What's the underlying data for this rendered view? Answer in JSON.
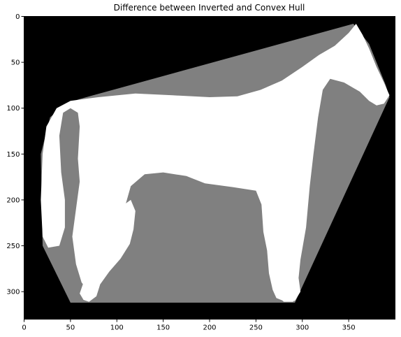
{
  "title": "Difference between Inverted and Convex Hull",
  "colors": {
    "background": "#000000",
    "hull_difference": "#808080",
    "horse": "#ffffff",
    "frame": "#000000"
  },
  "image_extent": {
    "width": 400,
    "height": 330
  },
  "x_ticks": [
    {
      "value": 0,
      "label": "0"
    },
    {
      "value": 50,
      "label": "50"
    },
    {
      "value": 100,
      "label": "100"
    },
    {
      "value": 150,
      "label": "150"
    },
    {
      "value": 200,
      "label": "200"
    },
    {
      "value": 250,
      "label": "250"
    },
    {
      "value": 300,
      "label": "300"
    },
    {
      "value": 350,
      "label": "350"
    }
  ],
  "y_ticks": [
    {
      "value": 0,
      "label": "0"
    },
    {
      "value": 50,
      "label": "50"
    },
    {
      "value": 100,
      "label": "100"
    },
    {
      "value": 150,
      "label": "150"
    },
    {
      "value": 200,
      "label": "200"
    },
    {
      "value": 250,
      "label": "250"
    },
    {
      "value": 300,
      "label": "300"
    }
  ],
  "hull_polygon": [
    [
      355,
      8
    ],
    [
      372,
      30
    ],
    [
      390,
      75
    ],
    [
      394,
      88
    ],
    [
      292,
      312
    ],
    [
      50,
      312
    ],
    [
      20,
      250
    ],
    [
      18,
      150
    ],
    [
      28,
      110
    ],
    [
      45,
      95
    ],
    [
      60,
      90
    ]
  ],
  "horse_shape": {
    "body": [
      [
        358,
        8
      ],
      [
        365,
        20
      ],
      [
        372,
        35
      ],
      [
        380,
        55
      ],
      [
        388,
        72
      ],
      [
        394,
        86
      ],
      [
        388,
        95
      ],
      [
        380,
        97
      ],
      [
        372,
        92
      ],
      [
        362,
        82
      ],
      [
        345,
        72
      ],
      [
        330,
        68
      ],
      [
        322,
        80
      ],
      [
        317,
        110
      ],
      [
        312,
        150
      ],
      [
        308,
        185
      ],
      [
        304,
        230
      ],
      [
        298,
        265
      ],
      [
        296,
        285
      ],
      [
        298,
        300
      ],
      [
        292,
        310
      ],
      [
        282,
        311
      ],
      [
        272,
        307
      ],
      [
        268,
        298
      ],
      [
        264,
        280
      ],
      [
        262,
        255
      ],
      [
        258,
        235
      ],
      [
        256,
        205
      ],
      [
        250,
        190
      ],
      [
        225,
        186
      ],
      [
        195,
        182
      ],
      [
        175,
        174
      ],
      [
        150,
        170
      ],
      [
        130,
        172
      ],
      [
        115,
        185
      ],
      [
        108,
        210
      ],
      [
        105,
        240
      ],
      [
        100,
        258
      ],
      [
        90,
        270
      ],
      [
        80,
        280
      ],
      [
        72,
        292
      ],
      [
        70,
        300
      ],
      [
        62,
        290
      ],
      [
        56,
        270
      ],
      [
        52,
        240
      ],
      [
        56,
        210
      ],
      [
        60,
        180
      ],
      [
        58,
        155
      ],
      [
        60,
        120
      ],
      [
        58,
        105
      ],
      [
        50,
        100
      ],
      [
        42,
        105
      ],
      [
        38,
        130
      ],
      [
        40,
        170
      ],
      [
        44,
        200
      ],
      [
        44,
        230
      ],
      [
        38,
        250
      ],
      [
        26,
        252
      ],
      [
        20,
        240
      ],
      [
        18,
        200
      ],
      [
        20,
        150
      ],
      [
        24,
        120
      ],
      [
        35,
        100
      ],
      [
        50,
        92
      ],
      [
        80,
        88
      ],
      [
        120,
        84
      ],
      [
        160,
        86
      ],
      [
        200,
        88
      ],
      [
        230,
        87
      ],
      [
        255,
        80
      ],
      [
        278,
        70
      ],
      [
        300,
        55
      ],
      [
        318,
        42
      ],
      [
        335,
        32
      ],
      [
        350,
        18
      ]
    ],
    "front_leg": [
      [
        290,
        190
      ],
      [
        288,
        210
      ],
      [
        286,
        240
      ],
      [
        287,
        270
      ],
      [
        290,
        292
      ],
      [
        293,
        305
      ],
      [
        290,
        311
      ],
      [
        280,
        311
      ],
      [
        274,
        305
      ],
      [
        272,
        290
      ],
      [
        273,
        260
      ],
      [
        275,
        230
      ],
      [
        276,
        205
      ],
      [
        278,
        190
      ]
    ],
    "hind_leg": [
      [
        108,
        205
      ],
      [
        104,
        230
      ],
      [
        96,
        250
      ],
      [
        86,
        262
      ],
      [
        72,
        278
      ],
      [
        64,
        290
      ],
      [
        60,
        302
      ],
      [
        64,
        309
      ],
      [
        70,
        311
      ],
      [
        78,
        305
      ],
      [
        82,
        292
      ],
      [
        92,
        278
      ],
      [
        104,
        264
      ],
      [
        114,
        248
      ],
      [
        118,
        232
      ],
      [
        120,
        212
      ],
      [
        115,
        200
      ]
    ]
  }
}
